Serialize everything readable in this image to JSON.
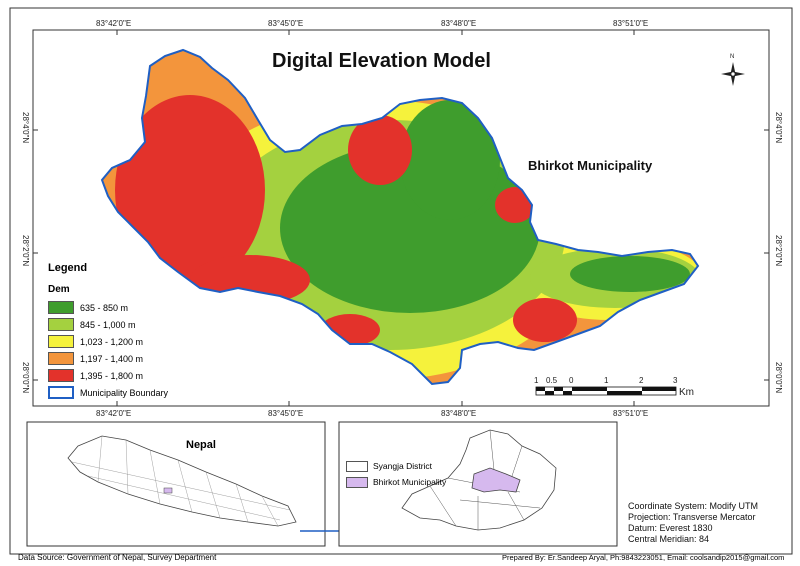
{
  "map": {
    "title": "Digital Elevation Model",
    "area_label": "Bhirkot Municipality",
    "north_label": "N",
    "grid_top": [
      "83°42'0\"E",
      "83°45'0\"E",
      "83°48'0\"E",
      "83°51'0\"E"
    ],
    "grid_bottom": [
      "83°42'0\"E",
      "83°45'0\"E",
      "83°48'0\"E",
      "83°51'0\"E"
    ],
    "grid_left": [
      "28°4'0\"N",
      "28°2'0\"N",
      "28°0'0\"N"
    ],
    "grid_right": [
      "28°4'0\"N",
      "28°2'0\"N",
      "28°0'0\"N"
    ],
    "colors": {
      "c1": "#3f9d2d",
      "c2": "#a4d13f",
      "c3": "#f5f23c",
      "c4": "#f3953c",
      "c5": "#e3322b",
      "boundary": "#1f5fc4"
    }
  },
  "legend": {
    "title": "Legend",
    "subtitle": "Dem",
    "classes": [
      {
        "label": "635 - 850 m",
        "color": "#3f9d2d"
      },
      {
        "label": "845 - 1,000 m",
        "color": "#a4d13f"
      },
      {
        "label": "1,023 - 1,200 m",
        "color": "#f5f23c"
      },
      {
        "label": "1,197 - 1,400 m",
        "color": "#f3953c"
      },
      {
        "label": "1,395 - 1,800 m",
        "color": "#e3322b"
      }
    ],
    "boundary_label": "Municipality Boundary"
  },
  "scalebar": {
    "ticks": [
      "1",
      "0.5",
      "0",
      "1",
      "2",
      "3"
    ],
    "unit": "Km"
  },
  "inset_nepal": {
    "title": "Nepal"
  },
  "inset_district": {
    "items": [
      {
        "label": "Syangja District",
        "color": "#ffffff"
      },
      {
        "label": "Bhirkot Municipality",
        "color": "#d6b9ee"
      }
    ]
  },
  "info": {
    "lines": [
      "Coordinate System: Modify UTM",
      "Projection: Transverse Mercator",
      "Datum: Everest 1830",
      "Central Meridian: 84"
    ]
  },
  "footer": {
    "source": "Data Source: Government of Nepal, Survey Department",
    "credit": "Prepared By: Er.Sandeep Aryal, Ph:9843223051, Email: coolsandip2015@gmail.com"
  }
}
